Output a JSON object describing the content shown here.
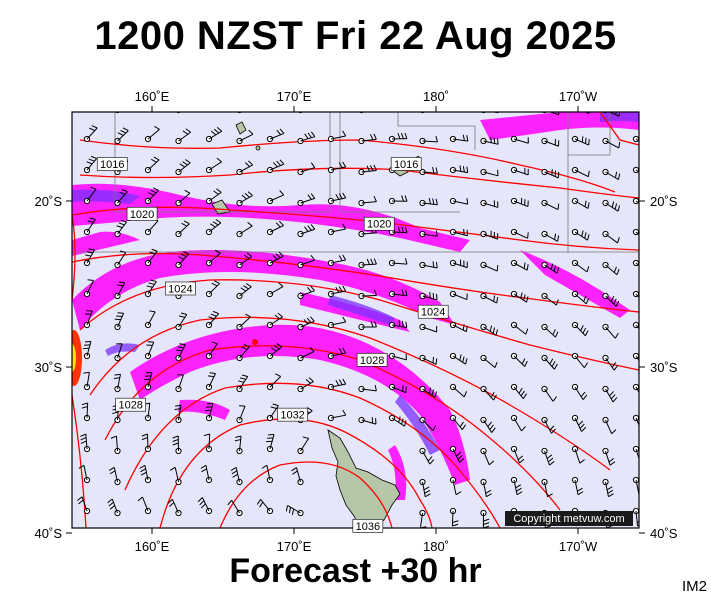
{
  "title": "1200 NZST Fri 22 Aug 2025",
  "subtitle": "Forecast +30 hr",
  "model_code": "IM2",
  "copyright": "Copyright metvuw.com",
  "colors": {
    "background": "#e6e6fa",
    "isobar": "#ff0000",
    "precip_light": "#ff00ff",
    "precip_heavy": "#7b2fff",
    "precip_max": "#ff3300",
    "land": "#b5c7a8"
  },
  "axes": {
    "lon_ticks": [
      {
        "value": 160,
        "label": "160˚E"
      },
      {
        "value": 170,
        "label": "170˚E"
      },
      {
        "value": 180,
        "label": "180˚"
      },
      {
        "value": 190,
        "label": "170˚W"
      }
    ],
    "lat_ticks": [
      {
        "value": -20,
        "label": "20˚S"
      },
      {
        "value": -30,
        "label": "30˚S"
      },
      {
        "value": -40,
        "label": "40˚S"
      }
    ]
  },
  "isobar_labels": [
    {
      "value": "1016",
      "lon": 157.2,
      "lat": -17.8
    },
    {
      "value": "1016",
      "lon": 177.9,
      "lat": -17.8
    },
    {
      "value": "1020",
      "lon": 159.3,
      "lat": -20.8
    },
    {
      "value": "1020",
      "lon": 176.0,
      "lat": -21.4
    },
    {
      "value": "1024",
      "lon": 162.0,
      "lat": -25.3
    },
    {
      "value": "1024",
      "lon": 179.8,
      "lat": -26.7
    },
    {
      "value": "1028",
      "lon": 175.5,
      "lat": -29.6
    },
    {
      "value": "1028",
      "lon": 158.5,
      "lat": -32.3
    },
    {
      "value": "1032",
      "lon": 169.9,
      "lat": -32.9
    },
    {
      "value": "1036",
      "lon": 175.2,
      "lat": -39.6
    }
  ]
}
